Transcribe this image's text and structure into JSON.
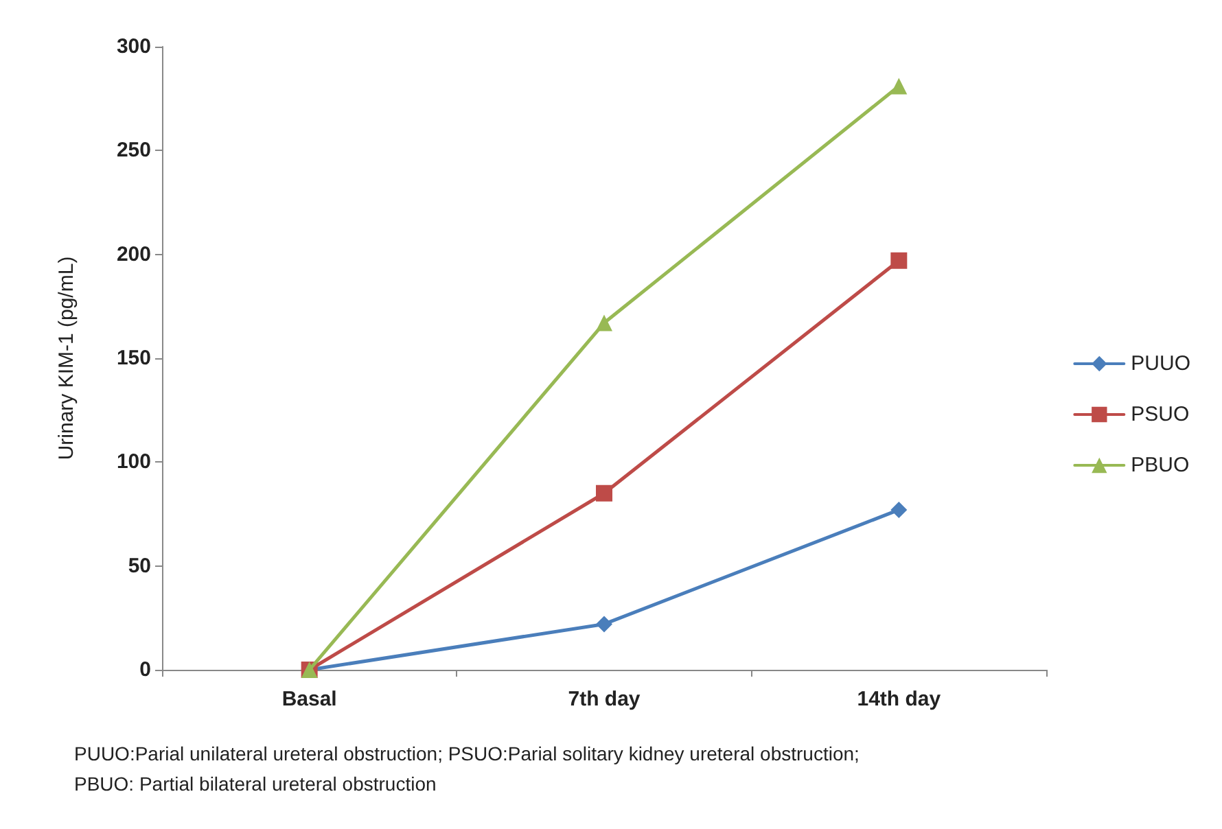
{
  "chart_data": {
    "type": "line",
    "ylabel": "Urinary KIM-1 (pg/mL)",
    "categories": [
      "Basal",
      "7th day",
      "14th day"
    ],
    "series": [
      {
        "name": "PUUO",
        "color": "#4a7ebb",
        "values": [
          0,
          22,
          77
        ],
        "marker": "diamond"
      },
      {
        "name": "PSUO",
        "color": "#be4b48",
        "values": [
          0,
          85,
          197
        ],
        "marker": "square"
      },
      {
        "name": "PBUO",
        "color": "#98b954",
        "values": [
          0,
          167,
          281
        ],
        "marker": "triangle"
      }
    ],
    "ylim": [
      0,
      300
    ],
    "yticks": [
      0,
      50,
      100,
      150,
      200,
      250,
      300
    ],
    "grid": false,
    "legend": "right",
    "annotations": [
      "PUUO:Parial unilateral ureteral obstruction; PSUO:Parial solitary kidney ureteral obstruction;",
      "PBUO: Partial bilateral ureteral obstruction"
    ]
  }
}
